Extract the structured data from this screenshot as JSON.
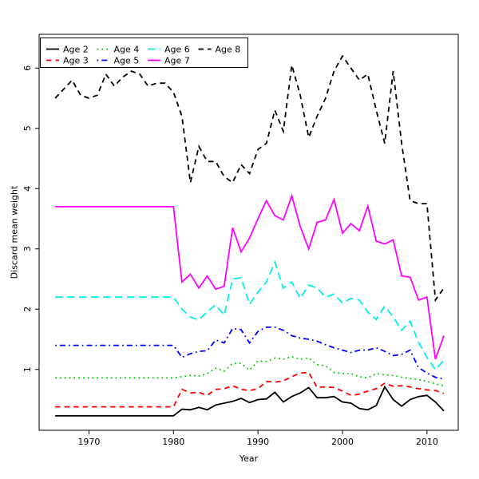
{
  "figure": {
    "background": "#ffffff"
  },
  "chart_data": {
    "type": "line",
    "title": "",
    "xlabel": "Year",
    "ylabel": "Discard mean weight",
    "xlim": [
      1964.1,
      2013.7
    ],
    "ylim": [
      -0.01,
      6.56
    ],
    "x_ticks": [
      1970,
      1980,
      1990,
      2000,
      2010
    ],
    "y_ticks": [
      1,
      2,
      3,
      4,
      5,
      6
    ],
    "grid": false,
    "legend_position": "top-left",
    "legend_rows": [
      [
        "Age 2",
        "Age 4",
        "Age 6",
        "Age 8"
      ],
      [
        "Age 3",
        "Age 5",
        "Age 7"
      ]
    ],
    "x": [
      1966,
      1967,
      1968,
      1969,
      1970,
      1971,
      1972,
      1973,
      1974,
      1975,
      1976,
      1977,
      1978,
      1979,
      1980,
      1981,
      1982,
      1983,
      1984,
      1985,
      1986,
      1987,
      1988,
      1989,
      1990,
      1991,
      1992,
      1993,
      1994,
      1995,
      1996,
      1997,
      1998,
      1999,
      2000,
      2001,
      2002,
      2003,
      2004,
      2005,
      2006,
      2007,
      2008,
      2009,
      2010,
      2011,
      2012
    ],
    "series": [
      {
        "name": "Age 2",
        "color": "#000000",
        "linestyle": "solid",
        "values": [
          0.23,
          0.23,
          0.23,
          0.23,
          0.23,
          0.23,
          0.23,
          0.23,
          0.23,
          0.23,
          0.23,
          0.23,
          0.23,
          0.23,
          0.23,
          0.34,
          0.33,
          0.37,
          0.33,
          0.41,
          0.44,
          0.47,
          0.52,
          0.45,
          0.5,
          0.51,
          0.62,
          0.46,
          0.55,
          0.61,
          0.7,
          0.53,
          0.53,
          0.55,
          0.46,
          0.44,
          0.35,
          0.33,
          0.4,
          0.71,
          0.5,
          0.39,
          0.5,
          0.55,
          0.57,
          0.46,
          0.31
        ]
      },
      {
        "name": "Age 3",
        "color": "#ff0000",
        "linestyle": "dashed",
        "values": [
          0.38,
          0.38,
          0.38,
          0.38,
          0.38,
          0.38,
          0.38,
          0.38,
          0.38,
          0.38,
          0.38,
          0.38,
          0.38,
          0.38,
          0.38,
          0.67,
          0.61,
          0.62,
          0.57,
          0.67,
          0.68,
          0.73,
          0.67,
          0.65,
          0.68,
          0.8,
          0.79,
          0.81,
          0.88,
          0.94,
          0.95,
          0.7,
          0.71,
          0.7,
          0.64,
          0.57,
          0.59,
          0.64,
          0.68,
          0.77,
          0.72,
          0.73,
          0.71,
          0.68,
          0.66,
          0.65,
          0.6
        ]
      },
      {
        "name": "Age 4",
        "color": "#00cd00",
        "linestyle": "dotted",
        "values": [
          0.86,
          0.86,
          0.86,
          0.86,
          0.86,
          0.86,
          0.86,
          0.86,
          0.86,
          0.86,
          0.86,
          0.86,
          0.86,
          0.86,
          0.86,
          0.88,
          0.9,
          0.89,
          0.93,
          1.02,
          0.97,
          1.1,
          1.1,
          0.99,
          1.14,
          1.13,
          1.19,
          1.17,
          1.21,
          1.17,
          1.19,
          1.08,
          1.06,
          0.95,
          0.93,
          0.93,
          0.88,
          0.86,
          0.93,
          0.91,
          0.9,
          0.87,
          0.85,
          0.83,
          0.8,
          0.76,
          0.73
        ]
      },
      {
        "name": "Age 5",
        "color": "#0000ff",
        "linestyle": "dashdot",
        "values": [
          1.4,
          1.4,
          1.4,
          1.4,
          1.4,
          1.4,
          1.4,
          1.4,
          1.4,
          1.4,
          1.4,
          1.4,
          1.4,
          1.4,
          1.4,
          1.2,
          1.26,
          1.3,
          1.31,
          1.49,
          1.44,
          1.68,
          1.66,
          1.44,
          1.63,
          1.7,
          1.7,
          1.65,
          1.56,
          1.52,
          1.5,
          1.47,
          1.41,
          1.36,
          1.32,
          1.28,
          1.32,
          1.32,
          1.36,
          1.3,
          1.23,
          1.25,
          1.32,
          1.03,
          0.94,
          0.87,
          0.84
        ]
      },
      {
        "name": "Age 6",
        "color": "#00eeee",
        "linestyle": "longdash",
        "values": [
          2.2,
          2.2,
          2.2,
          2.2,
          2.2,
          2.2,
          2.2,
          2.2,
          2.2,
          2.2,
          2.2,
          2.2,
          2.2,
          2.2,
          2.2,
          2.0,
          1.87,
          1.82,
          1.96,
          2.07,
          1.9,
          2.5,
          2.52,
          2.08,
          2.28,
          2.45,
          2.78,
          2.35,
          2.45,
          2.18,
          2.4,
          2.35,
          2.2,
          2.25,
          2.1,
          2.18,
          2.15,
          1.95,
          1.83,
          2.05,
          1.87,
          1.65,
          1.8,
          1.45,
          1.2,
          1.0,
          1.15
        ]
      },
      {
        "name": "Age 7",
        "color": "#ff00ff",
        "linestyle": "solid",
        "values": [
          3.7,
          3.7,
          3.7,
          3.7,
          3.7,
          3.7,
          3.7,
          3.7,
          3.7,
          3.7,
          3.7,
          3.7,
          3.7,
          3.7,
          3.7,
          2.45,
          2.58,
          2.35,
          2.55,
          2.33,
          2.38,
          3.35,
          2.95,
          3.18,
          3.5,
          3.8,
          3.55,
          3.48,
          3.88,
          3.37,
          3.0,
          3.44,
          3.48,
          3.82,
          3.26,
          3.42,
          3.3,
          3.71,
          3.13,
          3.08,
          3.15,
          2.55,
          2.53,
          2.15,
          2.2,
          1.17,
          1.56
        ]
      },
      {
        "name": "Age 8",
        "color": "#000000",
        "linestyle": "dashed",
        "values": [
          5.5,
          5.65,
          5.8,
          5.55,
          5.5,
          5.55,
          5.9,
          5.7,
          5.85,
          5.95,
          5.9,
          5.7,
          5.75,
          5.75,
          5.6,
          5.2,
          4.1,
          4.7,
          4.45,
          4.45,
          4.2,
          4.1,
          4.4,
          4.25,
          4.65,
          4.75,
          5.3,
          4.95,
          6.05,
          5.55,
          4.85,
          5.2,
          5.5,
          5.95,
          6.2,
          6.0,
          5.8,
          5.9,
          5.3,
          4.75,
          5.95,
          4.75,
          3.8,
          3.75,
          3.75,
          2.15,
          2.35
        ]
      }
    ]
  }
}
